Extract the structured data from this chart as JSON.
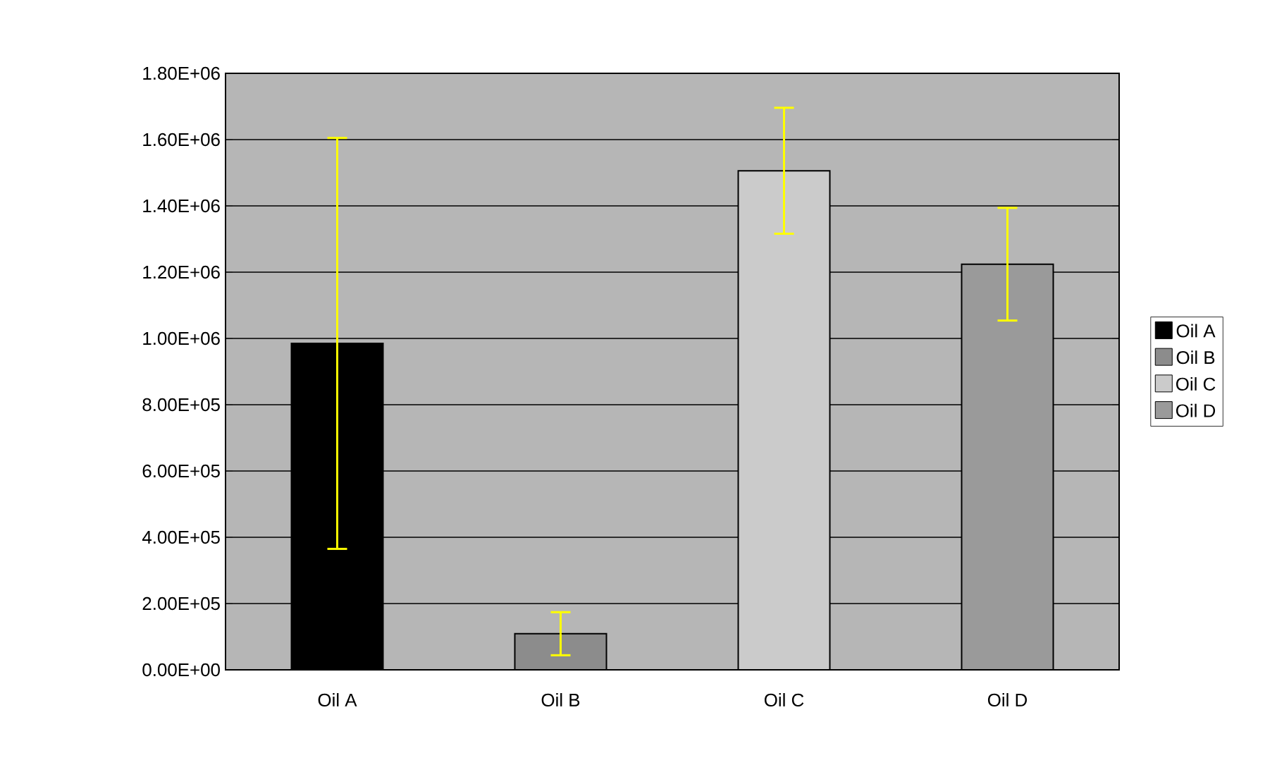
{
  "chart_data": {
    "type": "bar",
    "categories": [
      "Oil A",
      "Oil B",
      "Oil C",
      "Oil D"
    ],
    "series": [
      {
        "name": "Oil A",
        "color": "#000000",
        "values": [
          985000,
          null,
          null,
          null
        ],
        "errors": [
          620000,
          null,
          null,
          null
        ]
      },
      {
        "name": "Oil B",
        "color": "#8c8c8c",
        "values": [
          null,
          109000,
          null,
          null
        ],
        "errors": [
          null,
          65000,
          null,
          null
        ]
      },
      {
        "name": "Oil C",
        "color": "#cbcbcb",
        "values": [
          null,
          null,
          1506000,
          null
        ],
        "errors": [
          null,
          null,
          190000,
          null
        ]
      },
      {
        "name": "Oil D",
        "color": "#9a9a9a",
        "values": [
          null,
          null,
          null,
          1224000
        ],
        "errors": [
          null,
          null,
          null,
          170000
        ]
      }
    ],
    "ylim": [
      0,
      1800000
    ],
    "yticks": [
      {
        "value": 0,
        "label": "0.00E+00"
      },
      {
        "value": 200000,
        "label": "2.00E+05"
      },
      {
        "value": 400000,
        "label": "4.00E+05"
      },
      {
        "value": 600000,
        "label": "6.00E+05"
      },
      {
        "value": 800000,
        "label": "8.00E+05"
      },
      {
        "value": 1000000,
        "label": "1.00E+06"
      },
      {
        "value": 1200000,
        "label": "1.20E+06"
      },
      {
        "value": 1400000,
        "label": "1.40E+06"
      },
      {
        "value": 1600000,
        "label": "1.60E+06"
      },
      {
        "value": 1800000,
        "label": "1.80E+06"
      }
    ],
    "grid": "y",
    "legend": "right"
  }
}
